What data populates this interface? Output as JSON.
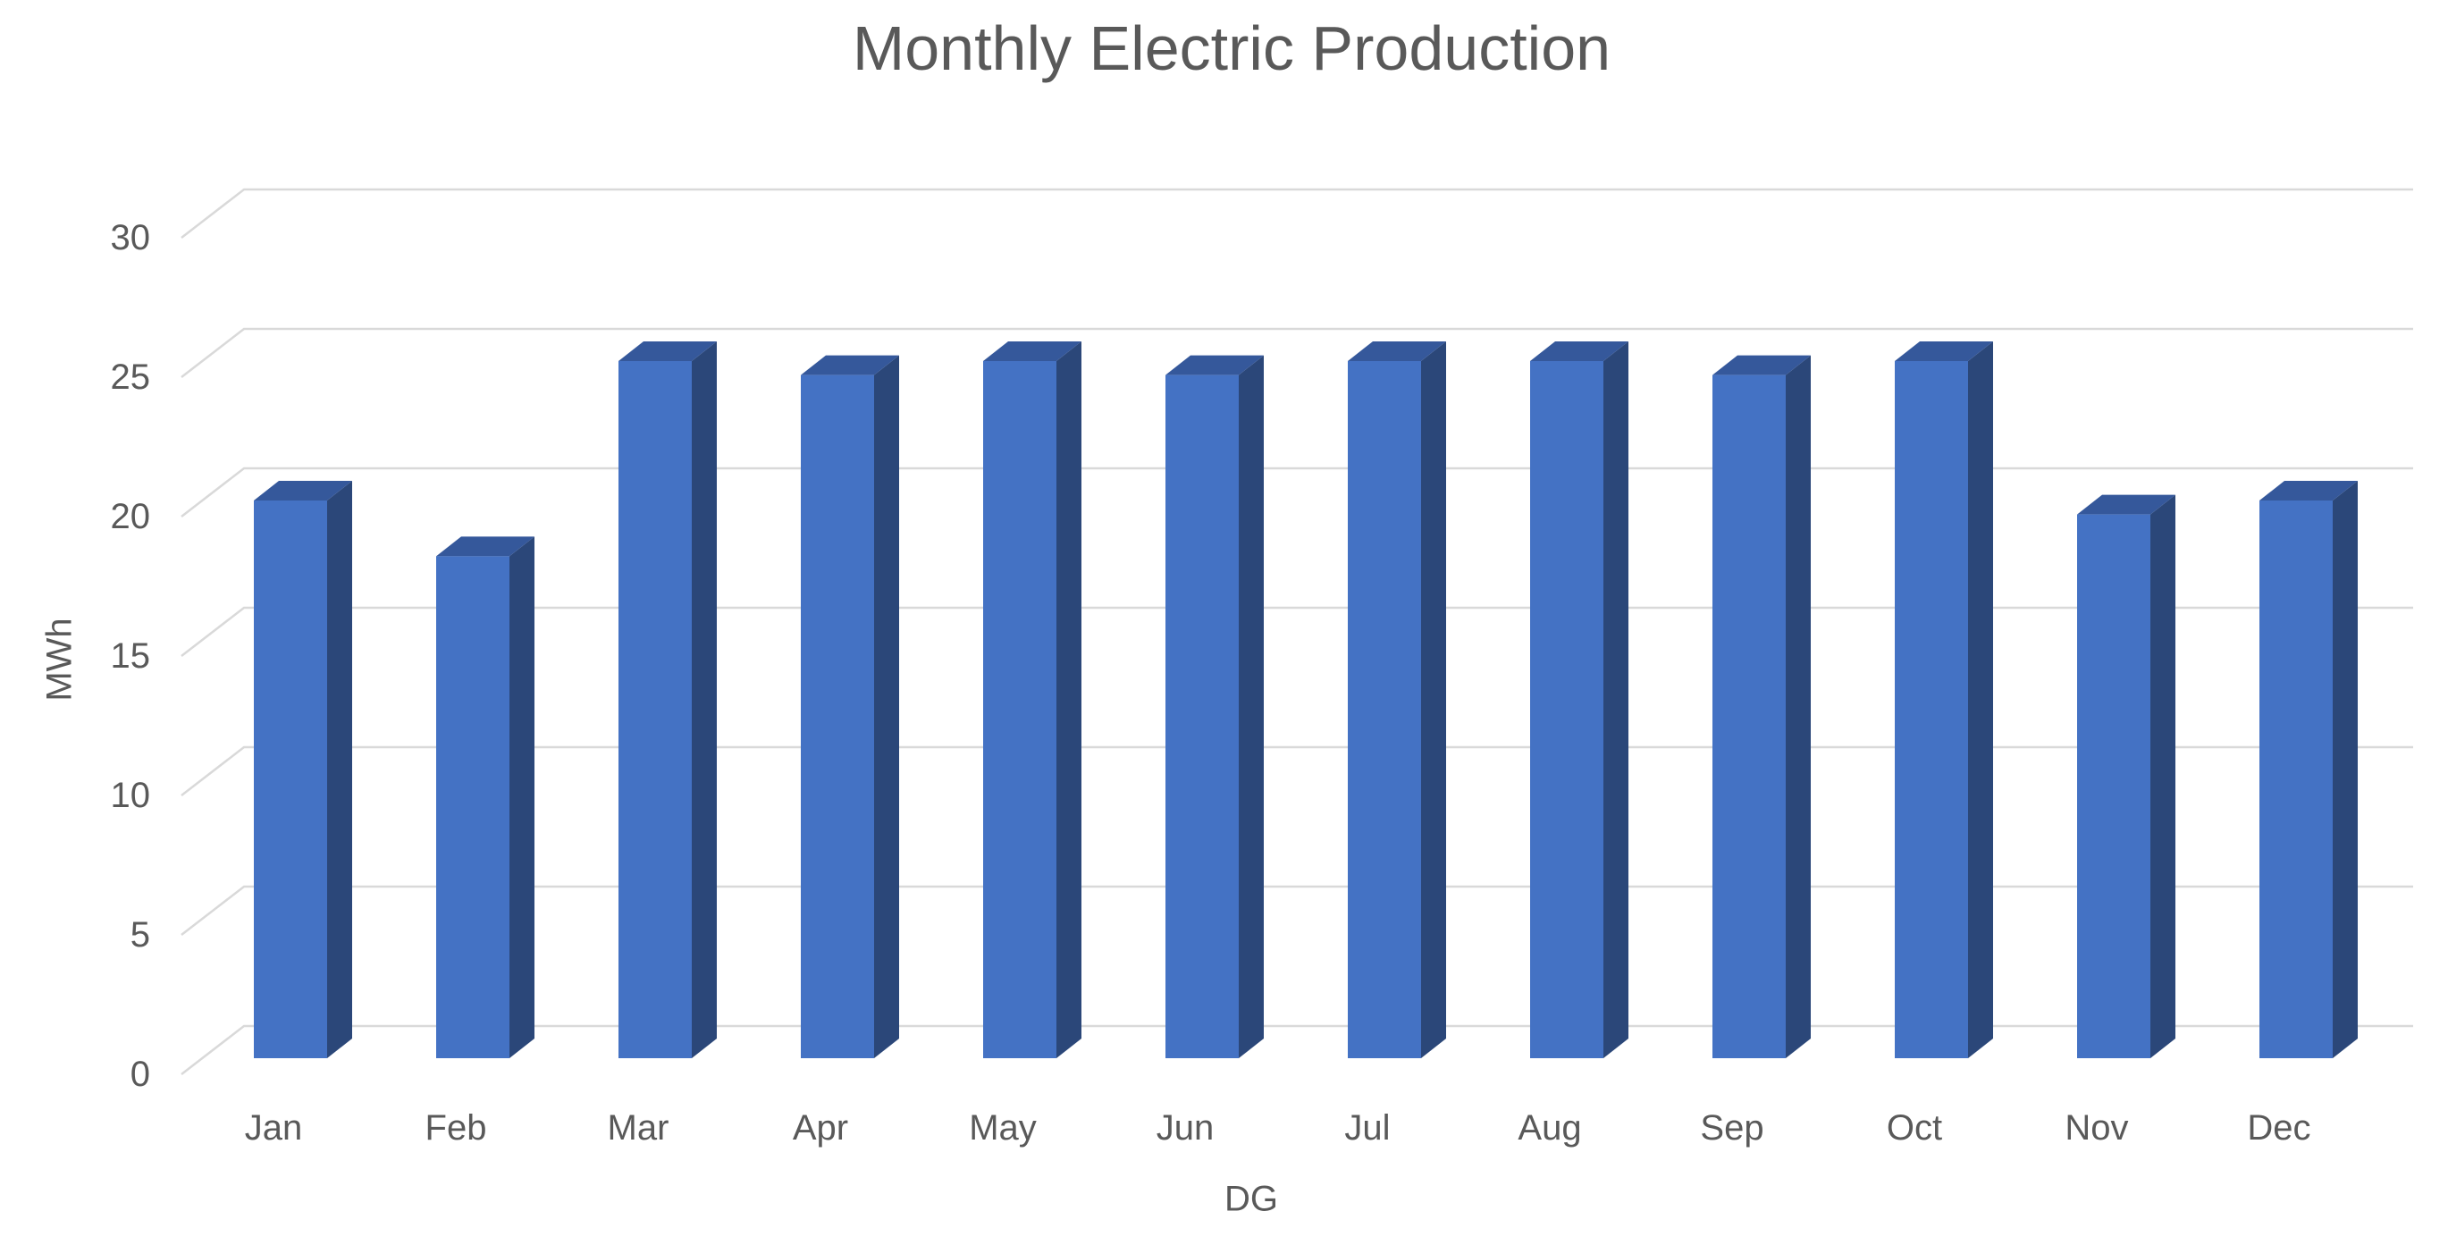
{
  "chart_data": {
    "type": "bar",
    "style": "3d-column",
    "title": "Monthly Electric Production",
    "xlabel": "DG",
    "ylabel": "MWh",
    "categories": [
      "Jan",
      "Feb",
      "Mar",
      "Apr",
      "May",
      "Jun",
      "Jul",
      "Aug",
      "Sep",
      "Oct",
      "Nov",
      "Dec"
    ],
    "series": [
      {
        "name": "MWh",
        "values": [
          20,
          18,
          25,
          24.5,
          25,
          24.5,
          25,
          25,
          24.5,
          25,
          19.5,
          20
        ]
      }
    ],
    "y_ticks": [
      0,
      5,
      10,
      15,
      20,
      25,
      30
    ],
    "ylim": [
      0,
      30
    ],
    "grid": true,
    "legend_position": "none",
    "colors": {
      "bar_front": "#4472C4",
      "bar_top": "#35589B",
      "bar_side": "#2B4779",
      "gridline": "#D9D9D9",
      "text": "#595959",
      "background": "#FFFFFF"
    }
  }
}
